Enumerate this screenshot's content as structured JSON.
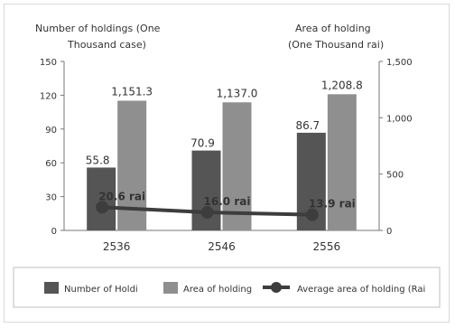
{
  "colors": {
    "holdings_bar": "#555555",
    "area_bar": "#8f8f8f",
    "average_line": "#3d3d3d",
    "text": "#333333",
    "axis": "#777777",
    "border": "#d9d9d9"
  },
  "chart_data": {
    "type": "bar",
    "categories": [
      "2536",
      "2546",
      "2556"
    ],
    "y_left": {
      "label_line1": "Number of holdings (One",
      "label_line2": "Thousand case)",
      "ticks": [
        "0",
        "30",
        "60",
        "90",
        "120",
        "150"
      ],
      "ylim": [
        0,
        150
      ]
    },
    "y_right": {
      "label_line1": "Area of holding",
      "label_line2": "(One Thousand rai)",
      "ticks": [
        "0",
        "500",
        "1,000",
        "1,500"
      ],
      "ylim": [
        0,
        1500
      ]
    },
    "series": [
      {
        "name": "Number of Holdi",
        "axis": "left",
        "kind": "bar",
        "values": [
          55.8,
          70.9,
          86.7
        ],
        "labels": [
          "55.8",
          "70.9",
          "86.7"
        ]
      },
      {
        "name": "Area of holding",
        "axis": "right",
        "kind": "bar",
        "values": [
          1151.3,
          1137.0,
          1208.8
        ],
        "labels": [
          "1,151.3",
          "1,137.0",
          "1,208.8"
        ]
      },
      {
        "name": "Average area of holding (Rai",
        "axis": "left",
        "kind": "line",
        "values": [
          20.6,
          16.0,
          13.9
        ],
        "labels": [
          "20.6 rai",
          "16.0 rai",
          "13.9 rai"
        ]
      }
    ],
    "grid": false,
    "legend_position": "bottom"
  }
}
